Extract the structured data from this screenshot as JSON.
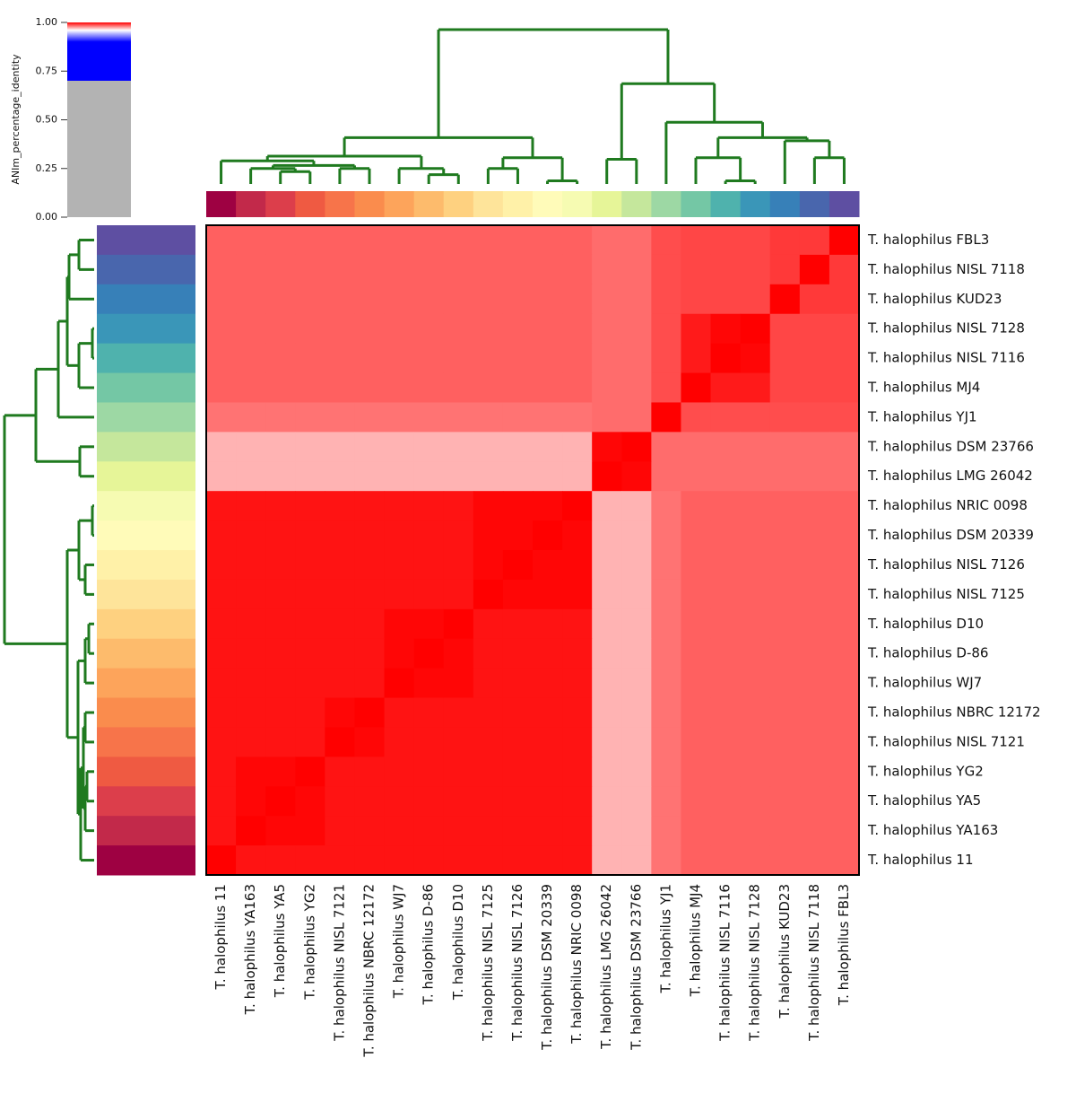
{
  "chart_data": {
    "type": "heatmap",
    "columns": [
      "T. halophilus 11",
      "T. halophilus YA163",
      "T. halophilus YA5",
      "T. halophilus YG2",
      "T. halophilus NISL 7121",
      "T. halophilus NBRC 12172",
      "T. halophilus WJ7",
      "T. halophilus D-86",
      "T. halophilus D10",
      "T. halophilus NISL 7125",
      "T. halophilus NISL 7126",
      "T. halophilus DSM 20339",
      "T. halophilus NRIC 0098",
      "T. halophilus LMG 26042",
      "T. halophilus DSM 23766",
      "T. halophilus YJ1",
      "T. halophilus MJ4",
      "T. halophilus NISL 7116",
      "T. halophilus NISL 7128",
      "T. halophilus KUD23",
      "T. halophilus NISL 7118",
      "T. halophilus FBL3"
    ],
    "rows": [
      "T. halophilus FBL3",
      "T. halophilus NISL 7118",
      "T. halophilus KUD23",
      "T. halophilus NISL 7128",
      "T. halophilus NISL 7116",
      "T. halophilus MJ4",
      "T. halophilus YJ1",
      "T. halophilus DSM 23766",
      "T. halophilus LMG 26042",
      "T. halophilus NRIC 0098",
      "T. halophilus DSM 20339",
      "T. halophilus NISL 7126",
      "T. halophilus NISL 7125",
      "T. halophilus D10",
      "T. halophilus D-86",
      "T. halophilus WJ7",
      "T. halophilus NBRC 12172",
      "T. halophilus NISL 7121",
      "T. halophilus YG2",
      "T. halophilus YA5",
      "T. halophilus YA163",
      "T. halophilus 11"
    ],
    "values": [
      [
        0.985,
        0.985,
        0.985,
        0.985,
        0.985,
        0.985,
        0.985,
        0.985,
        0.985,
        0.985,
        0.985,
        0.985,
        0.985,
        0.983,
        0.983,
        0.988,
        0.989,
        0.989,
        0.989,
        0.991,
        0.991,
        1
      ],
      [
        0.985,
        0.985,
        0.985,
        0.985,
        0.985,
        0.985,
        0.985,
        0.985,
        0.985,
        0.985,
        0.985,
        0.985,
        0.985,
        0.983,
        0.983,
        0.988,
        0.989,
        0.989,
        0.989,
        0.991,
        1,
        0.991
      ],
      [
        0.985,
        0.985,
        0.985,
        0.985,
        0.985,
        0.985,
        0.985,
        0.985,
        0.985,
        0.985,
        0.985,
        0.985,
        0.985,
        0.983,
        0.983,
        0.988,
        0.989,
        0.989,
        0.989,
        1,
        0.991,
        0.991
      ],
      [
        0.985,
        0.985,
        0.985,
        0.985,
        0.985,
        0.985,
        0.985,
        0.985,
        0.985,
        0.985,
        0.985,
        0.985,
        0.985,
        0.983,
        0.983,
        0.988,
        0.996,
        0.999,
        1,
        0.989,
        0.989,
        0.989
      ],
      [
        0.985,
        0.985,
        0.985,
        0.985,
        0.985,
        0.985,
        0.985,
        0.985,
        0.985,
        0.985,
        0.985,
        0.985,
        0.985,
        0.983,
        0.983,
        0.988,
        0.996,
        1,
        0.999,
        0.989,
        0.989,
        0.989
      ],
      [
        0.985,
        0.985,
        0.985,
        0.985,
        0.985,
        0.985,
        0.985,
        0.985,
        0.985,
        0.985,
        0.985,
        0.985,
        0.985,
        0.983,
        0.983,
        0.988,
        1,
        0.996,
        0.996,
        0.989,
        0.989,
        0.989
      ],
      [
        0.982,
        0.982,
        0.982,
        0.982,
        0.982,
        0.982,
        0.982,
        0.982,
        0.982,
        0.982,
        0.982,
        0.982,
        0.982,
        0.983,
        0.983,
        1,
        0.988,
        0.988,
        0.988,
        0.988,
        0.988,
        0.988
      ],
      [
        0.972,
        0.972,
        0.972,
        0.972,
        0.972,
        0.972,
        0.972,
        0.972,
        0.972,
        0.972,
        0.972,
        0.972,
        0.972,
        0.999,
        1,
        0.983,
        0.983,
        0.983,
        0.983,
        0.983,
        0.983,
        0.983
      ],
      [
        0.972,
        0.972,
        0.972,
        0.972,
        0.972,
        0.972,
        0.972,
        0.972,
        0.972,
        0.972,
        0.972,
        0.972,
        0.972,
        1,
        0.999,
        0.983,
        0.983,
        0.983,
        0.983,
        0.983,
        0.983,
        0.983
      ],
      [
        0.997,
        0.997,
        0.997,
        0.997,
        0.997,
        0.997,
        0.997,
        0.997,
        0.997,
        0.999,
        0.999,
        0.999,
        1,
        0.972,
        0.972,
        0.982,
        0.985,
        0.985,
        0.985,
        0.985,
        0.985,
        0.985
      ],
      [
        0.997,
        0.997,
        0.997,
        0.997,
        0.997,
        0.997,
        0.997,
        0.997,
        0.997,
        0.999,
        0.999,
        1,
        0.999,
        0.972,
        0.972,
        0.982,
        0.985,
        0.985,
        0.985,
        0.985,
        0.985,
        0.985
      ],
      [
        0.997,
        0.997,
        0.997,
        0.997,
        0.997,
        0.997,
        0.997,
        0.997,
        0.997,
        0.999,
        1,
        0.999,
        0.999,
        0.972,
        0.972,
        0.982,
        0.985,
        0.985,
        0.985,
        0.985,
        0.985,
        0.985
      ],
      [
        0.997,
        0.997,
        0.997,
        0.997,
        0.997,
        0.997,
        0.997,
        0.997,
        0.997,
        1,
        0.999,
        0.999,
        0.999,
        0.972,
        0.972,
        0.982,
        0.985,
        0.985,
        0.985,
        0.985,
        0.985,
        0.985
      ],
      [
        0.997,
        0.997,
        0.997,
        0.997,
        0.997,
        0.997,
        0.999,
        0.999,
        1,
        0.997,
        0.997,
        0.997,
        0.997,
        0.972,
        0.972,
        0.982,
        0.985,
        0.985,
        0.985,
        0.985,
        0.985,
        0.985
      ],
      [
        0.997,
        0.997,
        0.997,
        0.997,
        0.997,
        0.997,
        0.999,
        1,
        0.999,
        0.997,
        0.997,
        0.997,
        0.997,
        0.972,
        0.972,
        0.982,
        0.985,
        0.985,
        0.985,
        0.985,
        0.985,
        0.985
      ],
      [
        0.997,
        0.997,
        0.997,
        0.997,
        0.997,
        0.997,
        1,
        0.999,
        0.999,
        0.997,
        0.997,
        0.997,
        0.997,
        0.972,
        0.972,
        0.982,
        0.985,
        0.985,
        0.985,
        0.985,
        0.985,
        0.985
      ],
      [
        0.997,
        0.997,
        0.997,
        0.997,
        0.999,
        1,
        0.997,
        0.997,
        0.997,
        0.997,
        0.997,
        0.997,
        0.997,
        0.972,
        0.972,
        0.982,
        0.985,
        0.985,
        0.985,
        0.985,
        0.985,
        0.985
      ],
      [
        0.997,
        0.997,
        0.997,
        0.997,
        1,
        0.999,
        0.997,
        0.997,
        0.997,
        0.997,
        0.997,
        0.997,
        0.997,
        0.972,
        0.972,
        0.982,
        0.985,
        0.985,
        0.985,
        0.985,
        0.985,
        0.985
      ],
      [
        0.997,
        0.999,
        0.999,
        1,
        0.997,
        0.997,
        0.997,
        0.997,
        0.997,
        0.997,
        0.997,
        0.997,
        0.997,
        0.972,
        0.972,
        0.982,
        0.985,
        0.985,
        0.985,
        0.985,
        0.985,
        0.985
      ],
      [
        0.997,
        0.999,
        1,
        0.999,
        0.997,
        0.997,
        0.997,
        0.997,
        0.997,
        0.997,
        0.997,
        0.997,
        0.997,
        0.972,
        0.972,
        0.982,
        0.985,
        0.985,
        0.985,
        0.985,
        0.985,
        0.985
      ],
      [
        0.997,
        1,
        0.999,
        0.999,
        0.997,
        0.997,
        0.997,
        0.997,
        0.997,
        0.997,
        0.997,
        0.997,
        0.997,
        0.972,
        0.972,
        0.982,
        0.985,
        0.985,
        0.985,
        0.985,
        0.985,
        0.985
      ],
      [
        1,
        0.997,
        0.997,
        0.997,
        0.997,
        0.997,
        0.997,
        0.997,
        0.997,
        0.997,
        0.997,
        0.997,
        0.997,
        0.972,
        0.972,
        0.982,
        0.985,
        0.985,
        0.985,
        0.985,
        0.985,
        0.985
      ]
    ],
    "label_colors": [
      "#9e0142",
      "#c2294a",
      "#dc3e4b",
      "#ef5a42",
      "#f7744a",
      "#fa8c4d",
      "#fda45b",
      "#fdbb6c",
      "#fed180",
      "#fee49a",
      "#fff1a8",
      "#fffbb9",
      "#f6fbb2",
      "#e6f598",
      "#c5e79c",
      "#9dd8a4",
      "#74c7a5",
      "#4fb2ad",
      "#3a96b8",
      "#3780b8",
      "#4966ad",
      "#5e4fa2"
    ],
    "dendrogram_color": "#1f7a1f",
    "colormap": [
      [
        0,
        "#b3b3b3"
      ],
      [
        0.7,
        "#b3b3b3"
      ],
      [
        0.7,
        "#0000ff"
      ],
      [
        0.9,
        "#0000ff"
      ],
      [
        0.96,
        "#ffffff"
      ],
      [
        1,
        "#ff0000"
      ]
    ],
    "colorbar": {
      "label": "ANIm_percentage_identity",
      "ylim": [
        0,
        1
      ],
      "yticks": [
        {
          "value": 0,
          "label": "0.00"
        },
        {
          "value": 0.25,
          "label": "0.25"
        },
        {
          "value": 0.5,
          "label": "0.50"
        },
        {
          "value": 0.75,
          "label": "0.75"
        },
        {
          "value": 1,
          "label": "1.00"
        }
      ]
    }
  }
}
